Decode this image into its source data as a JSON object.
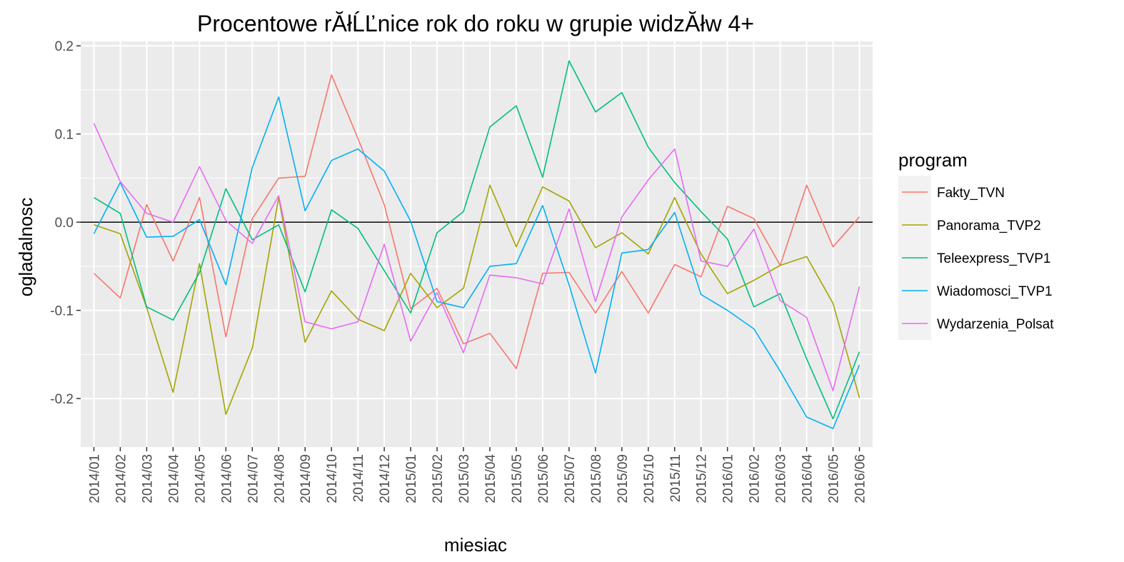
{
  "chart_data": {
    "type": "line",
    "title": "Procentowe rĂłĹĽnice rok do roku w grupie widzĂłw 4+",
    "xlabel": "miesiac",
    "ylabel": "ogladalnosc",
    "ylim": [
      -0.255,
      0.205
    ],
    "yticks": [
      -0.2,
      -0.1,
      0.0,
      0.1,
      0.2
    ],
    "ytick_labels": [
      "-0.2",
      "-0.1",
      "0.0",
      "0.1",
      "0.2"
    ],
    "reference_line": 0.0,
    "grid": true,
    "legend_position": "right",
    "legend_title": "program",
    "categories": [
      "2014/01",
      "2014/02",
      "2014/03",
      "2014/04",
      "2014/05",
      "2014/06",
      "2014/07",
      "2014/08",
      "2014/09",
      "2014/10",
      "2014/11",
      "2014/12",
      "2015/01",
      "2015/02",
      "2015/03",
      "2015/04",
      "2015/05",
      "2015/06",
      "2015/07",
      "2015/08",
      "2015/09",
      "2015/10",
      "2015/11",
      "2015/12",
      "2016/01",
      "2016/02",
      "2016/03",
      "2016/04",
      "2016/05",
      "2016/06"
    ],
    "series": [
      {
        "name": "Fakty_TVN",
        "color": "#F8766D",
        "values": [
          -0.058,
          -0.086,
          0.02,
          -0.044,
          0.028,
          -0.13,
          0.004,
          0.05,
          0.052,
          0.167,
          0.095,
          0.02,
          -0.098,
          -0.075,
          -0.138,
          -0.126,
          -0.166,
          -0.058,
          -0.057,
          -0.103,
          -0.056,
          -0.103,
          -0.048,
          -0.062,
          0.018,
          0.004,
          -0.049,
          0.042,
          -0.028,
          0.006
        ]
      },
      {
        "name": "Panorama_TVP2",
        "color": "#A3A500",
        "values": [
          -0.003,
          -0.013,
          -0.097,
          -0.193,
          -0.047,
          -0.218,
          -0.143,
          0.028,
          -0.136,
          -0.078,
          -0.11,
          -0.123,
          -0.058,
          -0.097,
          -0.075,
          0.042,
          -0.028,
          0.04,
          0.024,
          -0.029,
          -0.012,
          -0.036,
          0.028,
          -0.036,
          -0.081,
          -0.066,
          -0.049,
          -0.039,
          -0.092,
          -0.199
        ]
      },
      {
        "name": "Teleexpress_TVP1",
        "color": "#00BF7D",
        "values": [
          0.028,
          0.01,
          -0.096,
          -0.111,
          -0.057,
          0.038,
          -0.02,
          -0.003,
          -0.079,
          0.014,
          -0.007,
          -0.055,
          -0.103,
          -0.012,
          0.012,
          0.108,
          0.132,
          0.051,
          0.183,
          0.125,
          0.147,
          0.085,
          0.045,
          0.012,
          -0.019,
          -0.096,
          -0.081,
          -0.155,
          -0.223,
          -0.147
        ]
      },
      {
        "name": "Wiadomosci_TVP1",
        "color": "#00B0F6",
        "values": [
          -0.013,
          0.045,
          -0.017,
          -0.016,
          0.003,
          -0.071,
          0.062,
          0.142,
          0.013,
          0.07,
          0.083,
          0.058,
          0.001,
          -0.09,
          -0.097,
          -0.05,
          -0.047,
          0.019,
          -0.071,
          -0.171,
          -0.035,
          -0.031,
          0.011,
          -0.082,
          -0.1,
          -0.121,
          -0.169,
          -0.221,
          -0.234,
          -0.162
        ]
      },
      {
        "name": "Wydarzenia_Polsat",
        "color": "#E76BF3",
        "values": [
          0.112,
          0.046,
          0.01,
          0.0,
          0.063,
          0.002,
          -0.024,
          0.03,
          -0.113,
          -0.121,
          -0.113,
          -0.025,
          -0.135,
          -0.08,
          -0.148,
          -0.06,
          -0.063,
          -0.07,
          0.015,
          -0.09,
          0.006,
          0.048,
          0.083,
          -0.044,
          -0.05,
          -0.008,
          -0.089,
          -0.108,
          -0.191,
          -0.073
        ]
      }
    ]
  }
}
